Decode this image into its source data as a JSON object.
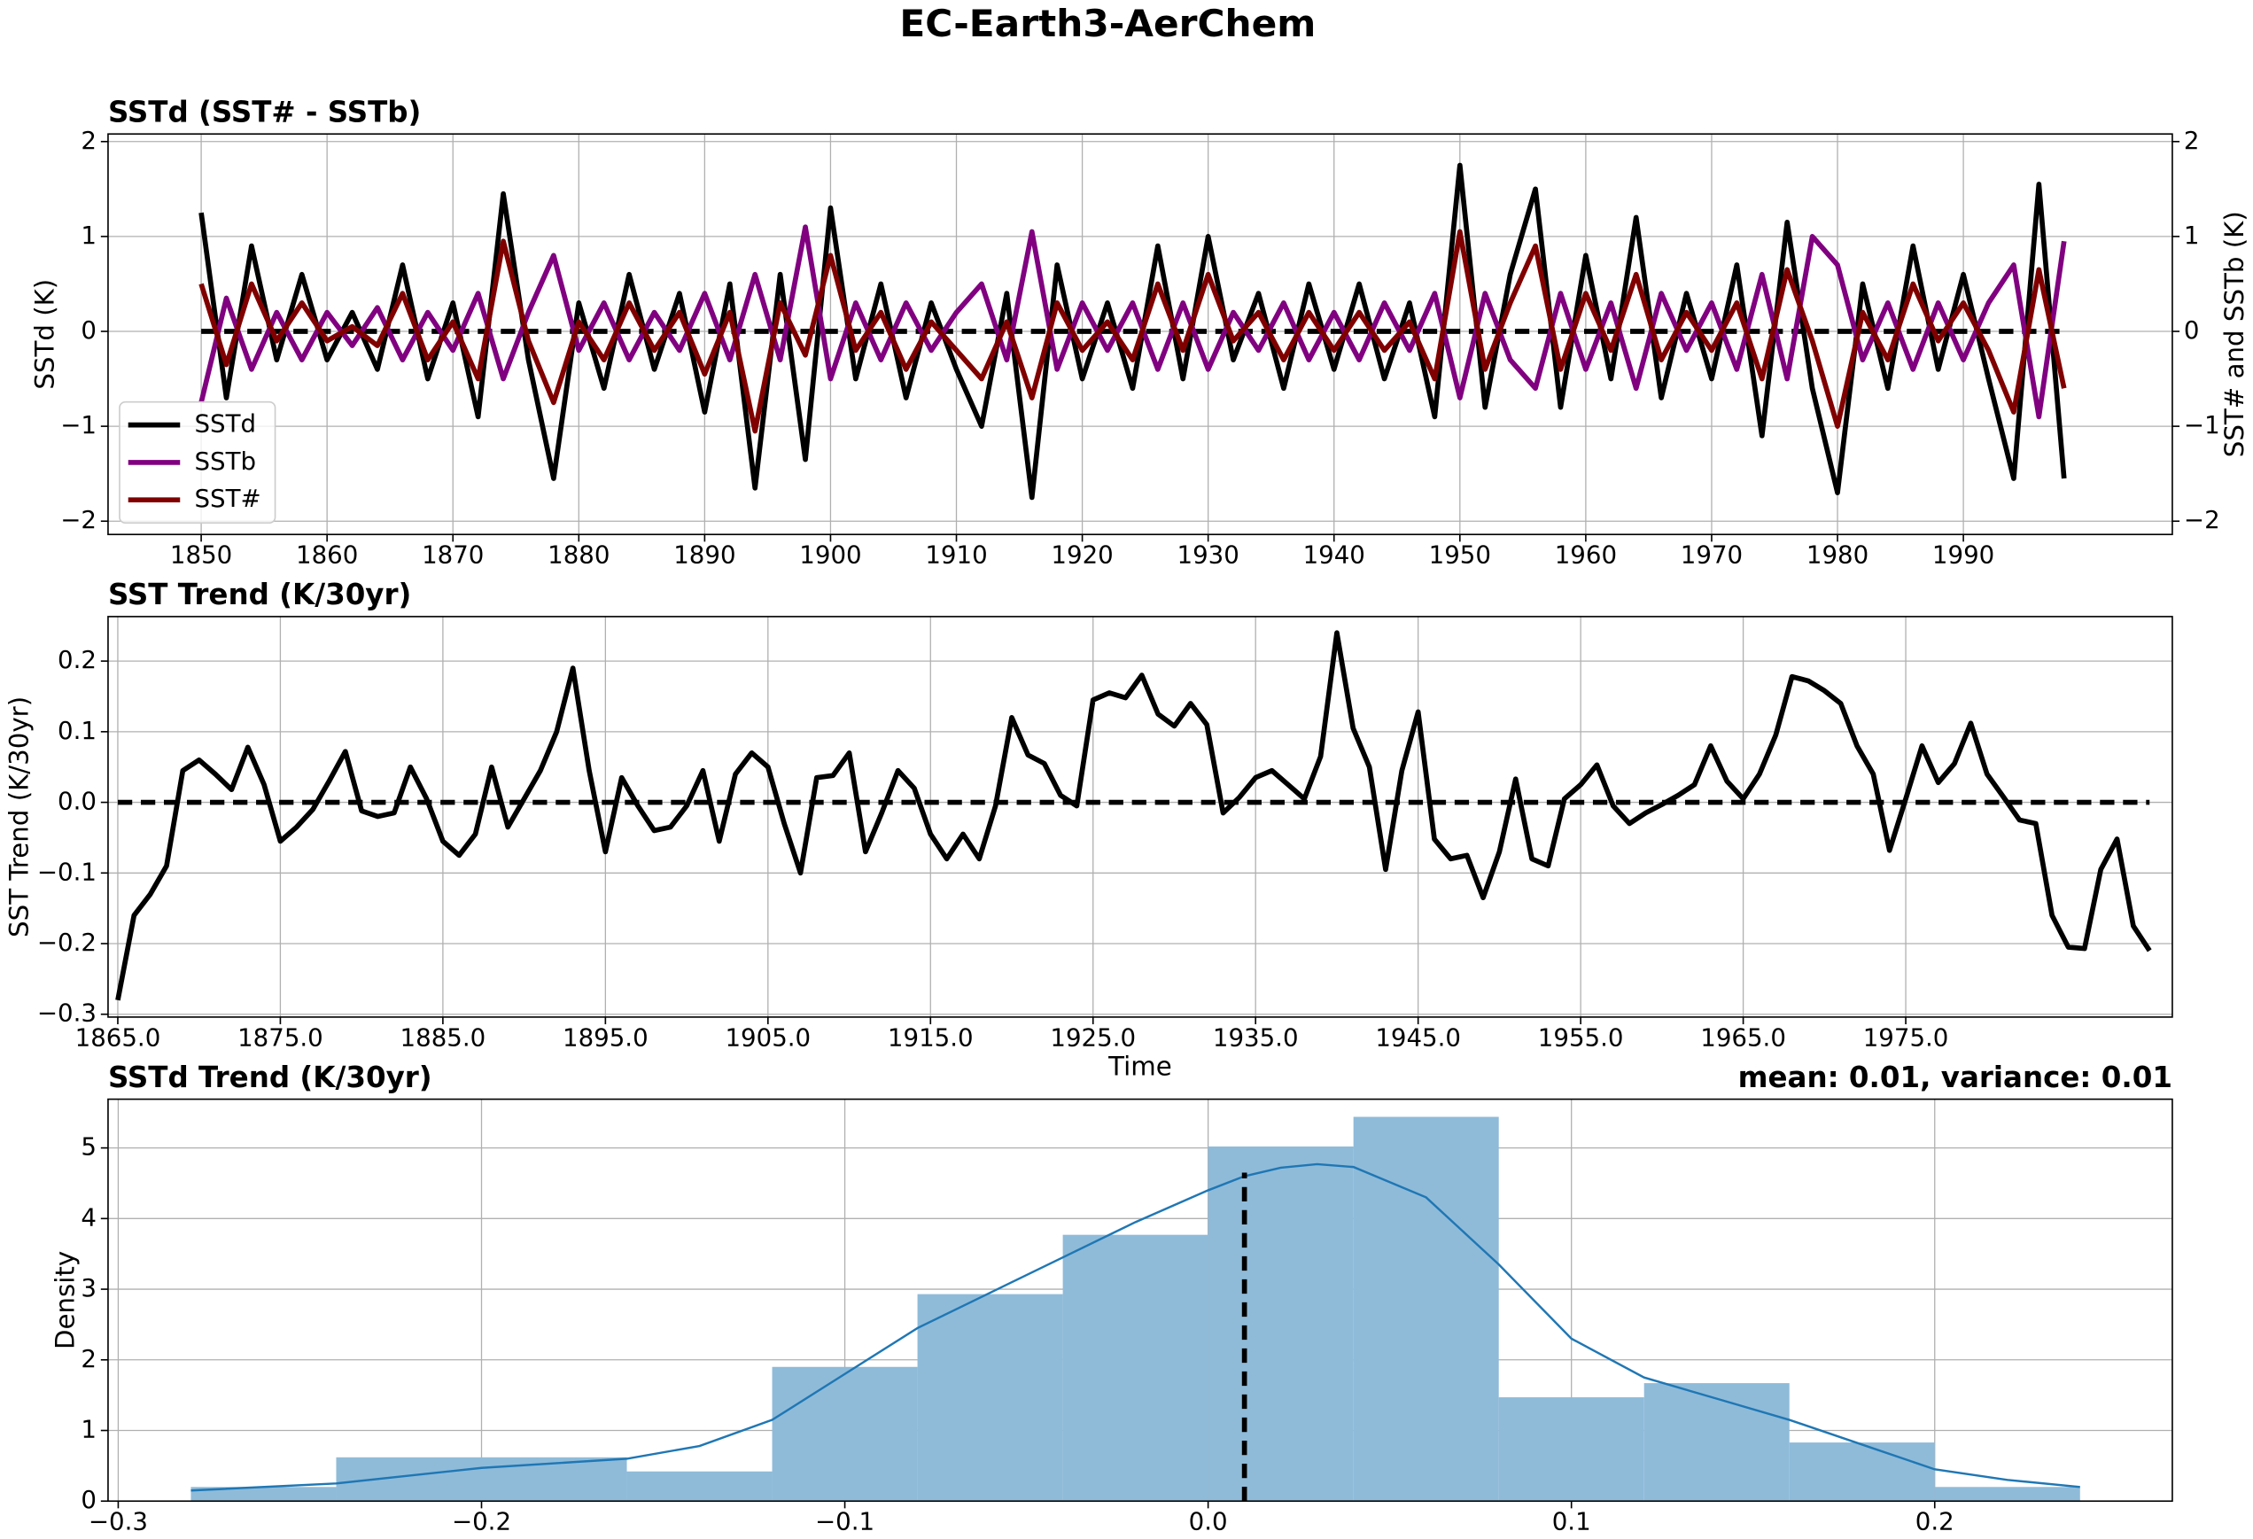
{
  "title": "EC-Earth3-AerChem",
  "chart_data": [
    {
      "type": "line",
      "title": "SSTd (SST# - SSTb)",
      "ylabel": "SSTd (K)",
      "y2label": "SST# and SSTb (K)",
      "x": [
        1850,
        1852,
        1854,
        1856,
        1858,
        1860,
        1862,
        1864,
        1866,
        1868,
        1870,
        1872,
        1874,
        1876,
        1878,
        1880,
        1882,
        1884,
        1886,
        1888,
        1890,
        1892,
        1894,
        1896,
        1898,
        1900,
        1902,
        1904,
        1906,
        1908,
        1910,
        1912,
        1914,
        1916,
        1918,
        1920,
        1922,
        1924,
        1926,
        1928,
        1930,
        1932,
        1934,
        1936,
        1938,
        1940,
        1942,
        1944,
        1946,
        1948,
        1950,
        1952,
        1954,
        1956,
        1958,
        1960,
        1962,
        1964,
        1966,
        1968,
        1970,
        1972,
        1974,
        1976,
        1978,
        1980,
        1982,
        1984,
        1986,
        1988,
        1990,
        1992,
        1994,
        1996,
        1998
      ],
      "series": [
        {
          "name": "SSTd",
          "color": "#000000",
          "values": [
            1.25,
            -0.7,
            0.9,
            -0.3,
            0.6,
            -0.3,
            0.2,
            -0.4,
            0.7,
            -0.5,
            0.3,
            -0.9,
            1.45,
            -0.3,
            -1.55,
            0.3,
            -0.6,
            0.6,
            -0.4,
            0.4,
            -0.85,
            0.5,
            -1.65,
            0.6,
            -1.35,
            1.3,
            -0.5,
            0.5,
            -0.7,
            0.3,
            -0.4,
            -1.0,
            0.4,
            -1.75,
            0.7,
            -0.5,
            0.3,
            -0.6,
            0.9,
            -0.5,
            1.0,
            -0.3,
            0.4,
            -0.6,
            0.5,
            -0.4,
            0.5,
            -0.5,
            0.3,
            -0.9,
            1.75,
            -0.8,
            0.6,
            1.5,
            -0.8,
            0.8,
            -0.5,
            1.2,
            -0.7,
            0.4,
            -0.5,
            0.7,
            -1.1,
            1.15,
            -0.6,
            -1.7,
            0.5,
            -0.6,
            0.9,
            -0.4,
            0.6,
            -0.5,
            -1.55,
            1.55,
            -1.55
          ]
        },
        {
          "name": "SSTb",
          "color": "#800080",
          "axis": "y2",
          "values": [
            -0.75,
            0.35,
            -0.4,
            0.2,
            -0.3,
            0.2,
            -0.15,
            0.25,
            -0.3,
            0.2,
            -0.2,
            0.4,
            -0.5,
            0.2,
            0.8,
            -0.2,
            0.3,
            -0.3,
            0.2,
            -0.2,
            0.4,
            -0.3,
            0.6,
            -0.3,
            1.1,
            -0.5,
            0.3,
            -0.3,
            0.3,
            -0.2,
            0.2,
            0.5,
            -0.3,
            1.05,
            -0.4,
            0.3,
            -0.2,
            0.3,
            -0.4,
            0.3,
            -0.4,
            0.2,
            -0.2,
            0.3,
            -0.3,
            0.2,
            -0.3,
            0.3,
            -0.2,
            0.4,
            -0.7,
            0.4,
            -0.3,
            -0.6,
            0.4,
            -0.4,
            0.3,
            -0.6,
            0.4,
            -0.2,
            0.3,
            -0.4,
            0.6,
            -0.5,
            1.0,
            0.7,
            -0.3,
            0.3,
            -0.4,
            0.3,
            -0.3,
            0.3,
            0.7,
            -0.9,
            0.95
          ]
        },
        {
          "name": "SST#",
          "color": "#800000",
          "axis": "y2",
          "values": [
            0.5,
            -0.35,
            0.5,
            -0.1,
            0.3,
            -0.1,
            0.05,
            -0.15,
            0.4,
            -0.3,
            0.1,
            -0.5,
            0.95,
            -0.1,
            -0.75,
            0.1,
            -0.3,
            0.3,
            -0.2,
            0.2,
            -0.45,
            0.2,
            -1.05,
            0.3,
            -0.25,
            0.8,
            -0.2,
            0.2,
            -0.4,
            0.1,
            -0.2,
            -0.5,
            0.1,
            -0.7,
            0.3,
            -0.2,
            0.1,
            -0.3,
            0.5,
            -0.2,
            0.6,
            -0.1,
            0.2,
            -0.3,
            0.2,
            -0.2,
            0.2,
            -0.2,
            0.1,
            -0.5,
            1.05,
            -0.4,
            0.3,
            0.9,
            -0.4,
            0.4,
            -0.2,
            0.6,
            -0.3,
            0.2,
            -0.2,
            0.3,
            -0.5,
            0.65,
            -0.1,
            -1.0,
            0.2,
            -0.3,
            0.5,
            -0.1,
            0.3,
            -0.2,
            -0.85,
            0.65,
            -0.6
          ]
        }
      ],
      "hline": 0,
      "xlim": [
        1842.6,
        2006.6
      ],
      "xticks": [
        1850,
        1860,
        1870,
        1880,
        1890,
        1900,
        1910,
        1920,
        1930,
        1940,
        1950,
        1960,
        1970,
        1980,
        1990
      ],
      "ylim": [
        -2.14,
        2.08
      ],
      "yticks": [
        {
          "value": -2,
          "label": "−2"
        },
        {
          "value": -1,
          "label": "−1"
        },
        0,
        1,
        2
      ],
      "y2lim": [
        -2.14,
        2.08
      ],
      "y2ticks": [
        {
          "value": -2,
          "label": "−2"
        },
        {
          "value": -1,
          "label": "−1"
        },
        0,
        1,
        2
      ],
      "grid": true,
      "legend": "lower left"
    },
    {
      "type": "line",
      "title": "SST Trend (K/30yr)",
      "ylabel": "SST Trend (K/30yr)",
      "xlabel": "Time",
      "x": [
        1865,
        1866,
        1867,
        1868,
        1869,
        1870,
        1871,
        1872,
        1873,
        1874,
        1875,
        1876,
        1877,
        1878,
        1879,
        1880,
        1881,
        1882,
        1883,
        1884,
        1885,
        1886,
        1887,
        1888,
        1889,
        1890,
        1891,
        1892,
        1893,
        1894,
        1895,
        1896,
        1897,
        1898,
        1899,
        1900,
        1901,
        1902,
        1903,
        1904,
        1905,
        1906,
        1907,
        1908,
        1909,
        1910,
        1911,
        1912,
        1913,
        1914,
        1915,
        1916,
        1917,
        1918,
        1919,
        1920,
        1921,
        1922,
        1923,
        1924,
        1925,
        1926,
        1927,
        1928,
        1929,
        1930,
        1931,
        1932,
        1933,
        1934,
        1935,
        1936,
        1937,
        1938,
        1939,
        1940,
        1941,
        1942,
        1943,
        1944,
        1945,
        1946,
        1947,
        1948,
        1949,
        1950,
        1951,
        1952,
        1953,
        1954,
        1955,
        1956,
        1957,
        1958,
        1959,
        1960,
        1961,
        1962,
        1963,
        1964,
        1965,
        1966,
        1967,
        1968,
        1969,
        1970,
        1971,
        1972,
        1973,
        1974,
        1975,
        1976,
        1977,
        1978,
        1979,
        1980,
        1981,
        1982,
        1983,
        1984,
        1985,
        1986,
        1987,
        1988,
        1989,
        1990
      ],
      "color": "#000000",
      "values": [
        -0.28,
        -0.16,
        -0.13,
        -0.09,
        0.045,
        0.06,
        0.04,
        0.018,
        0.078,
        0.025,
        -0.055,
        -0.035,
        -0.01,
        0.03,
        0.072,
        -0.012,
        -0.02,
        -0.015,
        0.05,
        0.005,
        -0.055,
        -0.075,
        -0.045,
        0.05,
        -0.035,
        0.005,
        0.045,
        0.1,
        0.19,
        0.045,
        -0.07,
        0.035,
        -0.005,
        -0.04,
        -0.035,
        -0.005,
        0.045,
        -0.055,
        0.04,
        0.07,
        0.05,
        -0.03,
        -0.1,
        0.035,
        0.038,
        0.07,
        -0.07,
        -0.015,
        0.045,
        0.02,
        -0.045,
        -0.08,
        -0.045,
        -0.08,
        -0.005,
        0.12,
        0.067,
        0.055,
        0.01,
        -0.005,
        0.145,
        0.155,
        0.148,
        0.18,
        0.125,
        0.108,
        0.14,
        0.11,
        -0.015,
        0.007,
        0.035,
        0.045,
        0.025,
        0.005,
        0.065,
        0.24,
        0.105,
        0.05,
        -0.095,
        0.045,
        0.128,
        -0.052,
        -0.08,
        -0.075,
        -0.135,
        -0.07,
        0.033,
        -0.08,
        -0.09,
        0.005,
        0.025,
        0.053,
        -0.005,
        -0.03,
        -0.015,
        -0.003,
        0.01,
        0.025,
        0.08,
        0.03,
        0.005,
        0.04,
        0.095,
        0.178,
        0.172,
        0.158,
        0.14,
        0.08,
        0.04,
        -0.068,
        0.005,
        0.08,
        0.028,
        0.055,
        0.112,
        0.04,
        0.008,
        -0.025,
        -0.03,
        -0.16,
        -0.205,
        -0.207,
        -0.095,
        -0.052,
        -0.175,
        -0.21
      ],
      "hline": 0,
      "xlim": [
        1864.4,
        1991.4
      ],
      "xticks": [
        {
          "value": 1865,
          "label": "1865.0"
        },
        {
          "value": 1875,
          "label": "1875.0"
        },
        {
          "value": 1885,
          "label": "1885.0"
        },
        {
          "value": 1895,
          "label": "1895.0"
        },
        {
          "value": 1905,
          "label": "1905.0"
        },
        {
          "value": 1915,
          "label": "1915.0"
        },
        {
          "value": 1925,
          "label": "1925.0"
        },
        {
          "value": 1935,
          "label": "1935.0"
        },
        {
          "value": 1945,
          "label": "1945.0"
        },
        {
          "value": 1955,
          "label": "1955.0"
        },
        {
          "value": 1965,
          "label": "1965.0"
        },
        {
          "value": 1975,
          "label": "1975.0"
        }
      ],
      "ylim": [
        -0.304,
        0.263
      ],
      "yticks": [
        {
          "value": -0.3,
          "label": "−0.3"
        },
        {
          "value": -0.2,
          "label": "−0.2"
        },
        {
          "value": -0.1,
          "label": "−0.1"
        },
        {
          "value": 0,
          "label": "0.0"
        },
        {
          "value": 0.1,
          "label": "0.1"
        },
        {
          "value": 0.2,
          "label": "0.2"
        }
      ],
      "grid": true
    },
    {
      "type": "histogram",
      "title": "SSTd Trend (K/30yr)",
      "annotation": "mean: 0.01, variance: 0.01",
      "ylabel": "Density",
      "bins": [
        -0.28,
        -0.24,
        -0.2,
        -0.16,
        -0.12,
        -0.08,
        -0.04,
        0,
        0.04,
        0.08,
        0.12,
        0.16,
        0.2,
        0.24
      ],
      "counts": [
        0.2,
        0.62,
        0.62,
        0.42,
        1.9,
        2.93,
        3.77,
        5.02,
        5.44,
        1.47,
        1.67,
        0.83,
        0.2
      ],
      "color": "#8fbbd9",
      "kde": {
        "color": "#1f77b4",
        "x": [
          -0.28,
          -0.24,
          -0.2,
          -0.16,
          -0.14,
          -0.12,
          -0.1,
          -0.08,
          -0.06,
          -0.04,
          -0.02,
          0,
          0.01,
          0.02,
          0.03,
          0.04,
          0.06,
          0.08,
          0.1,
          0.12,
          0.14,
          0.16,
          0.18,
          0.2,
          0.22,
          0.24
        ],
        "y": [
          0.15,
          0.25,
          0.47,
          0.6,
          0.78,
          1.15,
          1.8,
          2.45,
          2.95,
          3.45,
          3.95,
          4.4,
          4.6,
          4.72,
          4.77,
          4.73,
          4.3,
          3.35,
          2.3,
          1.75,
          1.45,
          1.15,
          0.8,
          0.45,
          0.3,
          0.2
        ]
      },
      "mean_line": {
        "x": 0.01,
        "ymax": 4.65
      },
      "xlim": [
        -0.3028,
        0.2654
      ],
      "xticks": [
        {
          "value": -0.3,
          "label": "−0.3"
        },
        {
          "value": -0.2,
          "label": "−0.2"
        },
        {
          "value": -0.1,
          "label": "−0.1"
        },
        {
          "value": 0,
          "label": "0.0"
        },
        {
          "value": 0.1,
          "label": "0.1"
        },
        {
          "value": 0.2,
          "label": "0.2"
        }
      ],
      "ylim": [
        0,
        5.69
      ],
      "yticks": [
        0,
        1,
        2,
        3,
        4,
        5
      ],
      "grid": true
    }
  ]
}
